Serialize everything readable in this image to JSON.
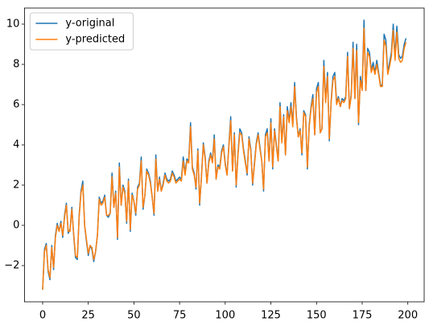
{
  "chart_data": {
    "type": "line",
    "x": [
      0,
      1,
      2,
      3,
      4,
      5,
      6,
      7,
      8,
      9,
      10,
      11,
      12,
      13,
      14,
      15,
      16,
      17,
      18,
      19,
      20,
      21,
      22,
      23,
      24,
      25,
      26,
      27,
      28,
      29,
      30,
      31,
      32,
      33,
      34,
      35,
      36,
      37,
      38,
      39,
      40,
      41,
      42,
      43,
      44,
      45,
      46,
      47,
      48,
      49,
      50,
      51,
      52,
      53,
      54,
      55,
      56,
      57,
      58,
      59,
      60,
      61,
      62,
      63,
      64,
      65,
      66,
      67,
      68,
      69,
      70,
      71,
      72,
      73,
      74,
      75,
      76,
      77,
      78,
      79,
      80,
      81,
      82,
      83,
      84,
      85,
      86,
      87,
      88,
      89,
      90,
      91,
      92,
      93,
      94,
      95,
      96,
      97,
      98,
      99,
      100,
      101,
      102,
      103,
      104,
      105,
      106,
      107,
      108,
      109,
      110,
      111,
      112,
      113,
      114,
      115,
      116,
      117,
      118,
      119,
      120,
      121,
      122,
      123,
      124,
      125,
      126,
      127,
      128,
      129,
      130,
      131,
      132,
      133,
      134,
      135,
      136,
      137,
      138,
      139,
      140,
      141,
      142,
      143,
      144,
      145,
      146,
      147,
      148,
      149,
      150,
      151,
      152,
      153,
      154,
      155,
      156,
      157,
      158,
      159,
      160,
      161,
      162,
      163,
      164,
      165,
      166,
      167,
      168,
      169,
      170,
      171,
      172,
      173,
      174,
      175,
      176,
      177,
      178,
      179,
      180,
      181,
      182,
      183,
      184,
      185,
      186,
      187,
      188,
      189,
      190,
      191,
      192,
      193,
      194,
      195,
      196,
      197,
      198,
      199
    ],
    "series": [
      {
        "name": "y-original",
        "color": "#1f77b4",
        "values": [
          -3.2,
          -1.2,
          -0.9,
          -2.3,
          -2.7,
          -1.0,
          -2.2,
          -0.5,
          0.1,
          -0.3,
          0.2,
          -0.6,
          0.5,
          1.1,
          -0.4,
          -0.2,
          0.9,
          -0.5,
          -1.6,
          -1.7,
          0.5,
          1.7,
          2.2,
          0.0,
          -0.8,
          -1.5,
          -1.0,
          -1.2,
          -1.8,
          -1.3,
          -0.5,
          1.4,
          1.1,
          1.2,
          1.5,
          0.5,
          0.4,
          0.6,
          2.6,
          0.9,
          1.7,
          -0.7,
          3.1,
          1.0,
          2.0,
          1.7,
          0.1,
          2.3,
          -0.3,
          1.6,
          1.2,
          0.5,
          1.9,
          2.1,
          3.4,
          0.8,
          1.5,
          2.8,
          2.6,
          2.2,
          1.4,
          0.5,
          3.5,
          1.7,
          2.4,
          1.7,
          2.1,
          2.6,
          2.3,
          2.2,
          2.3,
          2.7,
          2.5,
          2.2,
          2.3,
          2.4,
          2.3,
          3.4,
          2.6,
          3.3,
          3.2,
          5.1,
          2.9,
          2.6,
          1.8,
          3.8,
          1.0,
          2.5,
          4.1,
          3.4,
          2.1,
          3.2,
          3.6,
          3.2,
          4.5,
          2.3,
          3.0,
          2.9,
          3.7,
          4.0,
          3.1,
          2.5,
          4.0,
          5.4,
          2.7,
          4.6,
          1.9,
          3.6,
          4.8,
          4.6,
          3.8,
          3.2,
          2.5,
          4.4,
          3.8,
          2.0,
          3.1,
          4.1,
          4.6,
          3.9,
          3.2,
          1.7,
          4.5,
          4.8,
          3.2,
          5.3,
          2.8,
          4.8,
          4.0,
          3.2,
          6.1,
          4.2,
          5.5,
          3.5,
          5.9,
          5.2,
          6.1,
          5.0,
          7.1,
          5.4,
          4.4,
          4.8,
          3.5,
          5.7,
          5.5,
          2.8,
          5.0,
          5.9,
          6.5,
          4.5,
          6.8,
          7.1,
          4.6,
          4.8,
          8.2,
          6.2,
          7.6,
          4.2,
          6.2,
          7.4,
          7.6,
          6.1,
          6.4,
          5.9,
          6.3,
          6.2,
          6.4,
          8.6,
          5.8,
          6.5,
          9.1,
          6.3,
          9.0,
          5.0,
          7.4,
          6.8,
          10.2,
          6.7,
          8.8,
          8.6,
          7.7,
          8.1,
          7.6,
          8.2,
          7.6,
          7.0,
          6.9,
          9.5,
          9.2,
          7.6,
          8.1,
          8.6,
          10.0,
          8.4,
          9.9,
          8.5,
          8.3,
          8.4,
          9.0,
          9.3
        ]
      },
      {
        "name": "y-predicted",
        "color": "#ff7f0e",
        "values": [
          -3.2,
          -1.3,
          -1.0,
          -2.2,
          -2.6,
          -1.1,
          -2.1,
          -0.6,
          0.0,
          -0.3,
          0.1,
          -0.5,
          0.4,
          1.0,
          -0.3,
          -0.3,
          0.8,
          -0.4,
          -1.5,
          -1.6,
          0.4,
          1.6,
          2.0,
          0.0,
          -0.7,
          -1.4,
          -1.0,
          -1.1,
          -1.7,
          -1.3,
          -0.5,
          1.3,
          1.0,
          1.1,
          1.4,
          0.5,
          0.5,
          0.6,
          2.4,
          0.9,
          1.6,
          -0.6,
          2.9,
          1.0,
          1.9,
          1.6,
          0.2,
          2.2,
          -0.2,
          1.5,
          1.2,
          0.6,
          1.8,
          2.0,
          3.2,
          0.9,
          1.5,
          2.7,
          2.5,
          2.1,
          1.4,
          0.6,
          3.3,
          1.7,
          2.3,
          1.7,
          2.0,
          2.5,
          2.2,
          2.1,
          2.2,
          2.6,
          2.4,
          2.1,
          2.2,
          2.3,
          2.2,
          3.2,
          2.5,
          3.2,
          3.1,
          4.9,
          2.8,
          2.5,
          1.9,
          3.7,
          1.1,
          2.4,
          4.0,
          3.3,
          2.1,
          3.1,
          3.5,
          3.1,
          4.3,
          2.3,
          2.9,
          2.8,
          3.6,
          3.9,
          3.0,
          2.5,
          3.9,
          5.2,
          2.7,
          4.5,
          2.0,
          3.5,
          4.6,
          4.5,
          3.7,
          3.1,
          2.6,
          4.3,
          3.7,
          2.1,
          3.0,
          4.0,
          4.5,
          3.8,
          3.2,
          1.8,
          4.4,
          4.6,
          3.2,
          5.1,
          2.9,
          4.7,
          3.9,
          3.2,
          5.9,
          4.1,
          5.4,
          3.5,
          5.7,
          5.1,
          5.9,
          4.9,
          6.9,
          5.3,
          4.4,
          4.7,
          3.6,
          5.6,
          5.4,
          2.9,
          4.9,
          5.8,
          6.3,
          4.5,
          6.6,
          6.9,
          4.6,
          4.8,
          7.9,
          6.1,
          7.4,
          4.3,
          6.1,
          7.2,
          7.4,
          6.0,
          6.3,
          5.9,
          6.2,
          6.1,
          6.3,
          8.4,
          5.8,
          6.4,
          8.8,
          6.3,
          8.7,
          5.1,
          7.2,
          6.7,
          9.8,
          6.7,
          8.6,
          8.4,
          7.6,
          7.9,
          7.5,
          8.0,
          7.5,
          6.9,
          6.9,
          9.2,
          8.9,
          7.5,
          7.9,
          8.4,
          9.7,
          8.2,
          9.6,
          8.3,
          8.1,
          8.2,
          8.8,
          9.1
        ]
      }
    ],
    "xlim": [
      -9.95,
      208.95
    ],
    "xticks": [
      0,
      25,
      50,
      75,
      100,
      125,
      150,
      175,
      200
    ],
    "ylim": [
      -3.8,
      10.8
    ],
    "yticks": [
      {
        "value": -2,
        "label": "−2"
      },
      0,
      2,
      4,
      6,
      8,
      10
    ],
    "legend": "upper left"
  }
}
